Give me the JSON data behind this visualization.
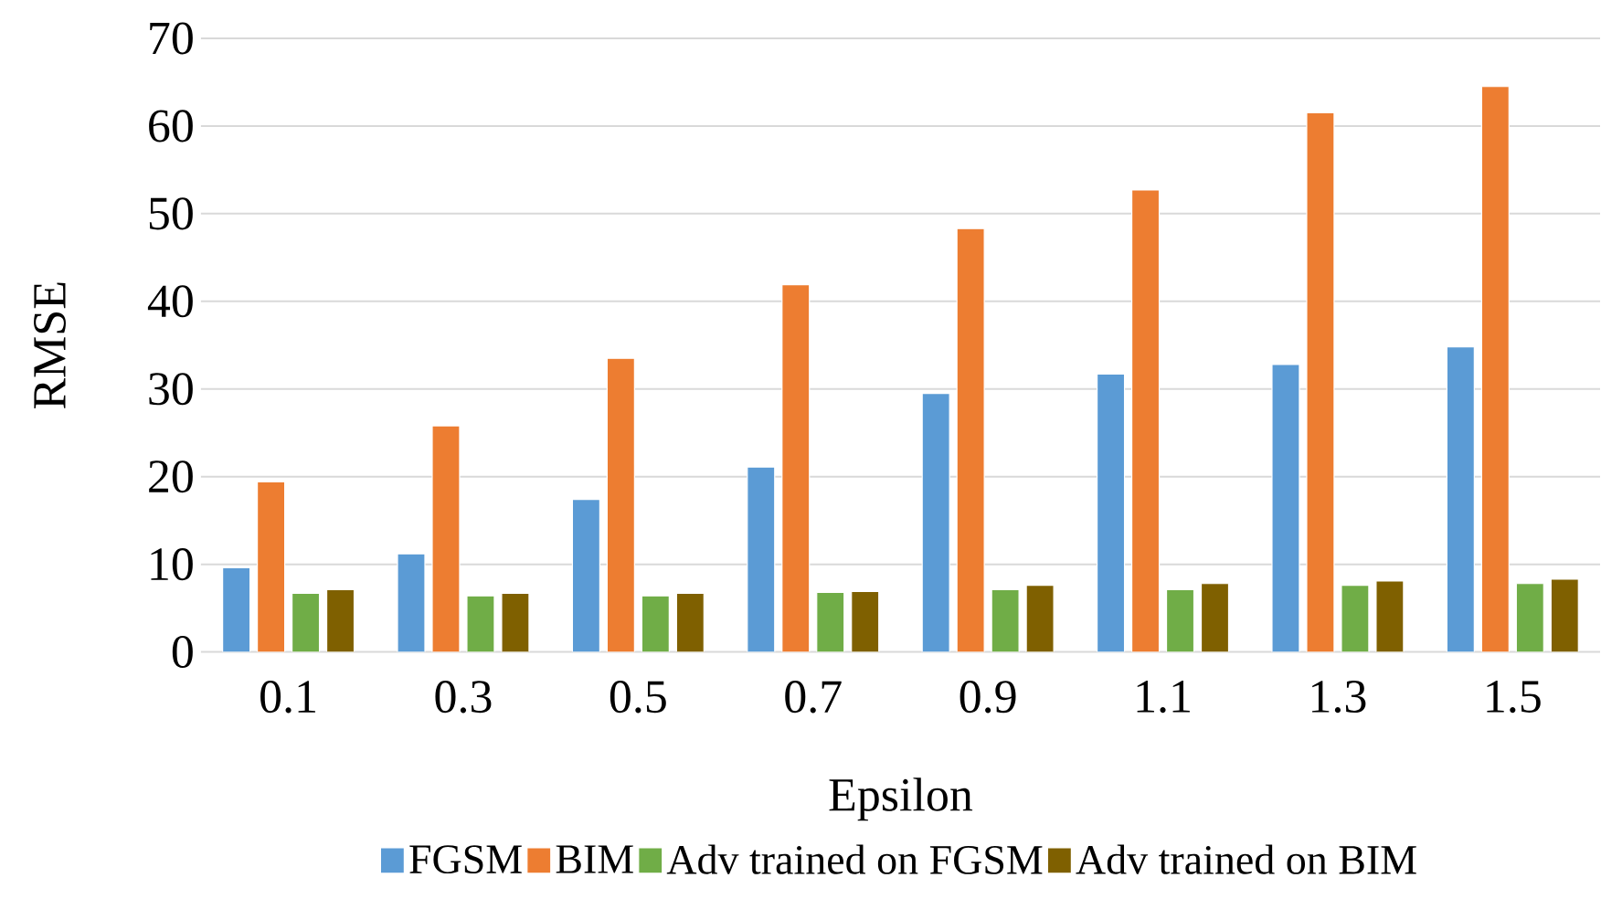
{
  "chart_data": {
    "type": "bar",
    "xlabel": "Epsilon",
    "ylabel": "RMSE",
    "categories": [
      "0.1",
      "0.3",
      "0.5",
      "0.7",
      "0.9",
      "1.1",
      "1.3",
      "1.5"
    ],
    "series": [
      {
        "name": "FGSM",
        "color": "#5b9bd5",
        "values": [
          9.6,
          11.2,
          17.4,
          21.1,
          29.5,
          31.7,
          32.8,
          34.8
        ]
      },
      {
        "name": "BIM",
        "color": "#ed7d31",
        "values": [
          19.4,
          25.8,
          33.5,
          41.9,
          48.3,
          52.7,
          61.5,
          64.5
        ]
      },
      {
        "name": "Adv trained on FGSM",
        "color": "#70ad47",
        "values": [
          6.7,
          6.4,
          6.4,
          6.8,
          7.1,
          7.1,
          7.6,
          7.8
        ]
      },
      {
        "name": "Adv trained on BIM",
        "color": "#7f6000",
        "values": [
          7.1,
          6.7,
          6.7,
          6.9,
          7.6,
          7.8,
          8.1,
          8.3
        ]
      }
    ],
    "ylim": [
      0,
      70
    ],
    "yticks": [
      0,
      10,
      20,
      30,
      40,
      50,
      60,
      70
    ],
    "grid": "y",
    "legend": "bottom"
  }
}
